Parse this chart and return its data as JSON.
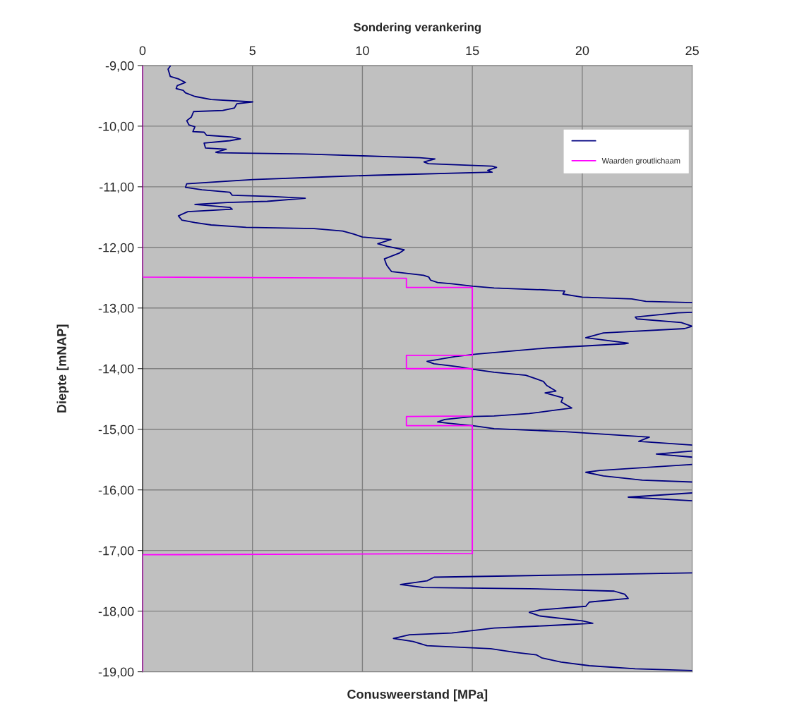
{
  "chart_data": {
    "type": "line",
    "title": "Sondering verankering",
    "xlabel": "Conusweerstand [MPa]",
    "ylabel": "Diepte [mNAP]",
    "xlim": [
      0,
      25
    ],
    "xticks": [
      0,
      5,
      10,
      15,
      20,
      25
    ],
    "ylim": [
      -19,
      -9
    ],
    "yticks": [
      {
        "value": -19,
        "label": "-19,00"
      },
      {
        "value": -18,
        "label": "-18,00"
      },
      {
        "value": -17,
        "label": "-17,00"
      },
      {
        "value": -16,
        "label": "-16,00"
      },
      {
        "value": -15,
        "label": "-15,00"
      },
      {
        "value": -14,
        "label": "-14,00"
      },
      {
        "value": -13,
        "label": "-13,00"
      },
      {
        "value": -12,
        "label": "-12,00"
      },
      {
        "value": -11,
        "label": "-11,00"
      },
      {
        "value": -10,
        "label": "-10,00"
      },
      {
        "value": -9,
        "label": "-9,00"
      }
    ],
    "grid": true,
    "legend": "top right",
    "marker": "none",
    "line_style": "solid",
    "series": [
      {
        "color": "#000080",
        "x": [
          1.26,
          1.16,
          1.26,
          1.63,
          1.95,
          1.58,
          1.53,
          1.85,
          1.95,
          2.38,
          3.12,
          5.01,
          4.29,
          4.18,
          3.65,
          2.32,
          2.22,
          2.01,
          2.11,
          2.38,
          2.29,
          2.8,
          2.91,
          4.08,
          4.45,
          3.97,
          2.8,
          2.86,
          3.81,
          3.33,
          3.44,
          7.37,
          10.02,
          12.6,
          13.3,
          12.8,
          13.0,
          15.9,
          16.1,
          15.7,
          15.9,
          10.6,
          8.8,
          5.03,
          2.01,
          1.95,
          2.7,
          3.97,
          4.08,
          5.88,
          7.4,
          5.67,
          3.86,
          2.38,
          3.97,
          4.08,
          2.06,
          1.63,
          1.79,
          2.38,
          3.12,
          4.71,
          7.8,
          9.1,
          9.6,
          10.0,
          11.3,
          10.7,
          11.1,
          11.9,
          11.7,
          11.0,
          11.1,
          11.24,
          11.33,
          12.78,
          13.02,
          13.1,
          13.42,
          14.06,
          15.02,
          15.99,
          18.23,
          19.2,
          19.12,
          20.0,
          22.25,
          22.89,
          25,
          null,
          25,
          24.34,
          22.41,
          22.49,
          24.5,
          25,
          24.65,
          20.96,
          20.16,
          22.09,
          21.93,
          18.39,
          15.18,
          14.22,
          13.42,
          12.94,
          13.26,
          14.38,
          15.02,
          15.99,
          17.43,
          18.23,
          18.39,
          18.8,
          18.31,
          19.12,
          19.04,
          19.52,
          18.88,
          17.59,
          15.99,
          15.02,
          13.74,
          13.42,
          13.9,
          15.02,
          15.99,
          19.2,
          23.05,
          22.57,
          25,
          null,
          25,
          23.37,
          25,
          null,
          25,
          20.8,
          20.16,
          20.96,
          22.73,
          25,
          null,
          25,
          22.09,
          25,
          null,
          25,
          19.84,
          13.26,
          12.94,
          11.73,
          12.78,
          17.59,
          21.45,
          21.93,
          22.09,
          20.32,
          20.16,
          18.07,
          17.59,
          18.07,
          20.0,
          20.48,
          18.39,
          15.99,
          14.06,
          12.14,
          11.41,
          12.3,
          12.94,
          15.83,
          16.95,
          17.91,
          18.15,
          19.04,
          20.32,
          22.41,
          25
        ],
        "values": [
          -9.01,
          -9.06,
          -9.18,
          -9.22,
          -9.28,
          -9.33,
          -9.38,
          -9.41,
          -9.45,
          -9.51,
          -9.56,
          -9.6,
          -9.63,
          -9.7,
          -9.74,
          -9.76,
          -9.85,
          -9.91,
          -9.98,
          -10.01,
          -10.09,
          -10.1,
          -10.15,
          -10.18,
          -10.21,
          -10.24,
          -10.28,
          -10.36,
          -10.38,
          -10.43,
          -10.44,
          -10.46,
          -10.49,
          -10.52,
          -10.54,
          -10.59,
          -10.62,
          -10.66,
          -10.68,
          -10.73,
          -10.76,
          -10.81,
          -10.83,
          -10.88,
          -10.95,
          -11.01,
          -11.05,
          -11.09,
          -11.14,
          -11.16,
          -11.19,
          -11.24,
          -11.26,
          -11.29,
          -11.34,
          -11.37,
          -11.41,
          -11.48,
          -11.55,
          -11.59,
          -11.63,
          -11.67,
          -11.69,
          -11.73,
          -11.78,
          -11.83,
          -11.87,
          -11.94,
          -11.98,
          -12.04,
          -12.09,
          -12.19,
          -12.29,
          -12.36,
          -12.4,
          -12.46,
          -12.49,
          -12.54,
          -12.58,
          -12.6,
          -12.64,
          -12.67,
          -12.7,
          -12.72,
          -12.77,
          -12.82,
          -12.85,
          -12.89,
          -12.91,
          null,
          -13.07,
          -13.08,
          -13.15,
          -13.18,
          -13.24,
          -13.3,
          -13.34,
          -13.41,
          -13.49,
          -13.58,
          -13.59,
          -13.66,
          -13.76,
          -13.8,
          -13.85,
          -13.88,
          -13.92,
          -13.97,
          -14.01,
          -14.06,
          -14.11,
          -14.21,
          -14.28,
          -14.37,
          -14.4,
          -14.48,
          -14.55,
          -14.65,
          -14.68,
          -14.74,
          -14.78,
          -14.79,
          -14.84,
          -14.88,
          -14.9,
          -14.94,
          -14.99,
          -15.04,
          -15.13,
          -15.2,
          -15.26,
          null,
          -15.36,
          -15.41,
          -15.46,
          null,
          -15.58,
          -15.68,
          -15.71,
          -15.77,
          -15.84,
          -15.87,
          null,
          -16.05,
          -16.12,
          -16.18,
          null,
          -17.37,
          -17.4,
          -17.44,
          -17.5,
          -17.56,
          -17.61,
          -17.63,
          -17.67,
          -17.72,
          -17.79,
          -17.85,
          -17.92,
          -17.98,
          -18.02,
          -18.08,
          -18.16,
          -18.2,
          -18.24,
          -18.28,
          -18.36,
          -18.39,
          -18.45,
          -18.5,
          -18.57,
          -18.62,
          -18.68,
          -18.72,
          -18.77,
          -18.84,
          -18.9,
          -18.95,
          -18.98
        ]
      },
      {
        "name": "Waarden groutlichaam",
        "color": "#ff00ff",
        "x": [
          0,
          0,
          12,
          12,
          15,
          15,
          12,
          12,
          15,
          15,
          12,
          12,
          15,
          15,
          0,
          0
        ],
        "values": [
          -9,
          -12.49,
          -12.51,
          -12.66,
          -12.66,
          -13.78,
          -13.78,
          -14.0,
          -14.0,
          -14.78,
          -14.79,
          -14.94,
          -14.94,
          -17.05,
          -17.07,
          -19
        ]
      }
    ]
  }
}
